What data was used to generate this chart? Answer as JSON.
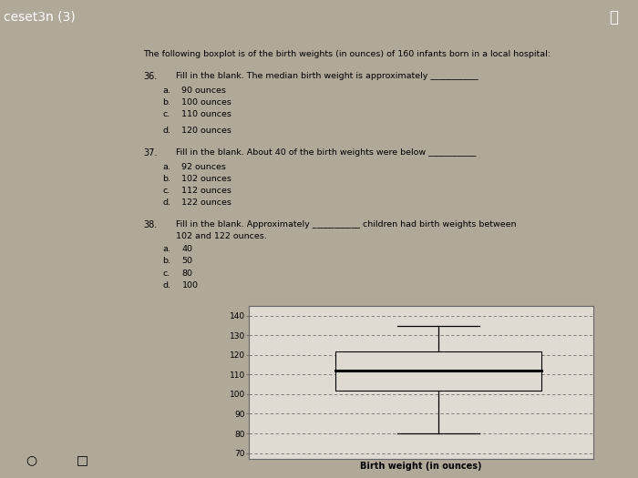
{
  "title": "ceset3n (3)",
  "intro_text": "The following boxplot is of the birth weights (in ounces) of 160 infants born in a local hospital:",
  "questions": [
    {
      "num": "36.",
      "text": "Fill in the blank. The median birth weight is approximately ___________",
      "options": [
        {
          "label": "a.",
          "text": "90 ounces"
        },
        {
          "label": "b.",
          "text": "100 ounces"
        },
        {
          "label": "c.",
          "text": "110 ounces"
        },
        {
          "label": "d.",
          "text": "120 ounces"
        }
      ],
      "extra_gap_after_c": true
    },
    {
      "num": "37.",
      "text": "Fill in the blank. About 40 of the birth weights were below ___________",
      "options": [
        {
          "label": "a.",
          "text": "92 ounces"
        },
        {
          "label": "b.",
          "text": "102 ounces"
        },
        {
          "label": "c.",
          "text": "112 ounces"
        },
        {
          "label": "d.",
          "text": "122 ounces"
        }
      ],
      "extra_gap_after_c": false
    },
    {
      "num": "38.",
      "text": "Fill in the blank. Approximately ___________ children had birth weights between",
      "text2": "102 and 122 ounces.",
      "options": [
        {
          "label": "a.",
          "text": "40"
        },
        {
          "label": "b.",
          "text": "50"
        },
        {
          "label": "c.",
          "text": "80"
        },
        {
          "label": "d.",
          "text": "100"
        }
      ],
      "extra_gap_after_c": false
    }
  ],
  "boxplot": {
    "whisker_low": 80,
    "q1": 102,
    "median": 112,
    "q3": 122,
    "whisker_high": 135,
    "ylim": [
      67,
      145
    ],
    "yticks": [
      70,
      80,
      90,
      100,
      110,
      120,
      130,
      140
    ],
    "xlabel": "Birth weight (in ounces)"
  },
  "outer_bg": "#b0a898",
  "page_bg": "#e0dbd2",
  "content_bg": "#dedad2",
  "title_bg": "#8c8880",
  "text_color": "#000000",
  "box_facecolor": "#dedad2",
  "box_edgecolor": "#000000"
}
